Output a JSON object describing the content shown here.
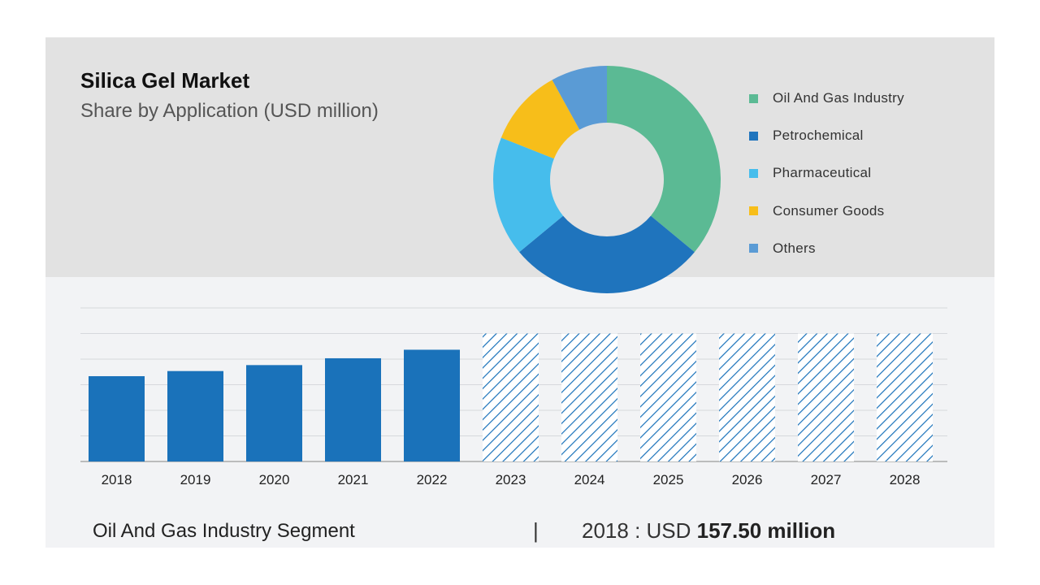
{
  "header": {
    "title": "Silica Gel Market",
    "subtitle": "Share by Application (USD million)"
  },
  "chart_data": [
    {
      "type": "pie",
      "variant": "donut",
      "title": "Silica Gel Market",
      "subtitle": "Share by Application (USD million)",
      "legend_position": "right",
      "categories": [
        "Oil And Gas Industry",
        "Petrochemical",
        "Pharmaceutical",
        "Consumer Goods",
        "Others"
      ],
      "values": [
        36,
        28,
        17,
        11,
        8
      ],
      "colors": [
        "#5bba94",
        "#1f74bd",
        "#46bdec",
        "#f7be1a",
        "#5a9bd5"
      ]
    },
    {
      "type": "bar",
      "categories": [
        "2018",
        "2019",
        "2020",
        "2021",
        "2022",
        "2023",
        "2024",
        "2025",
        "2026",
        "2027",
        "2028"
      ],
      "values": [
        100,
        106,
        113,
        121,
        131,
        150,
        150,
        150,
        150,
        150,
        150
      ],
      "forecast_from": "2023",
      "ylim": [
        0,
        180
      ],
      "y_axis_labels_shown": false,
      "grid": true,
      "bar_color": "#1a72ba"
    }
  ],
  "footer": {
    "segment_label": "Oil And Gas Industry Segment",
    "separator": "|",
    "value_prefix": "2018 : USD",
    "value_bold": "157.50 million"
  }
}
